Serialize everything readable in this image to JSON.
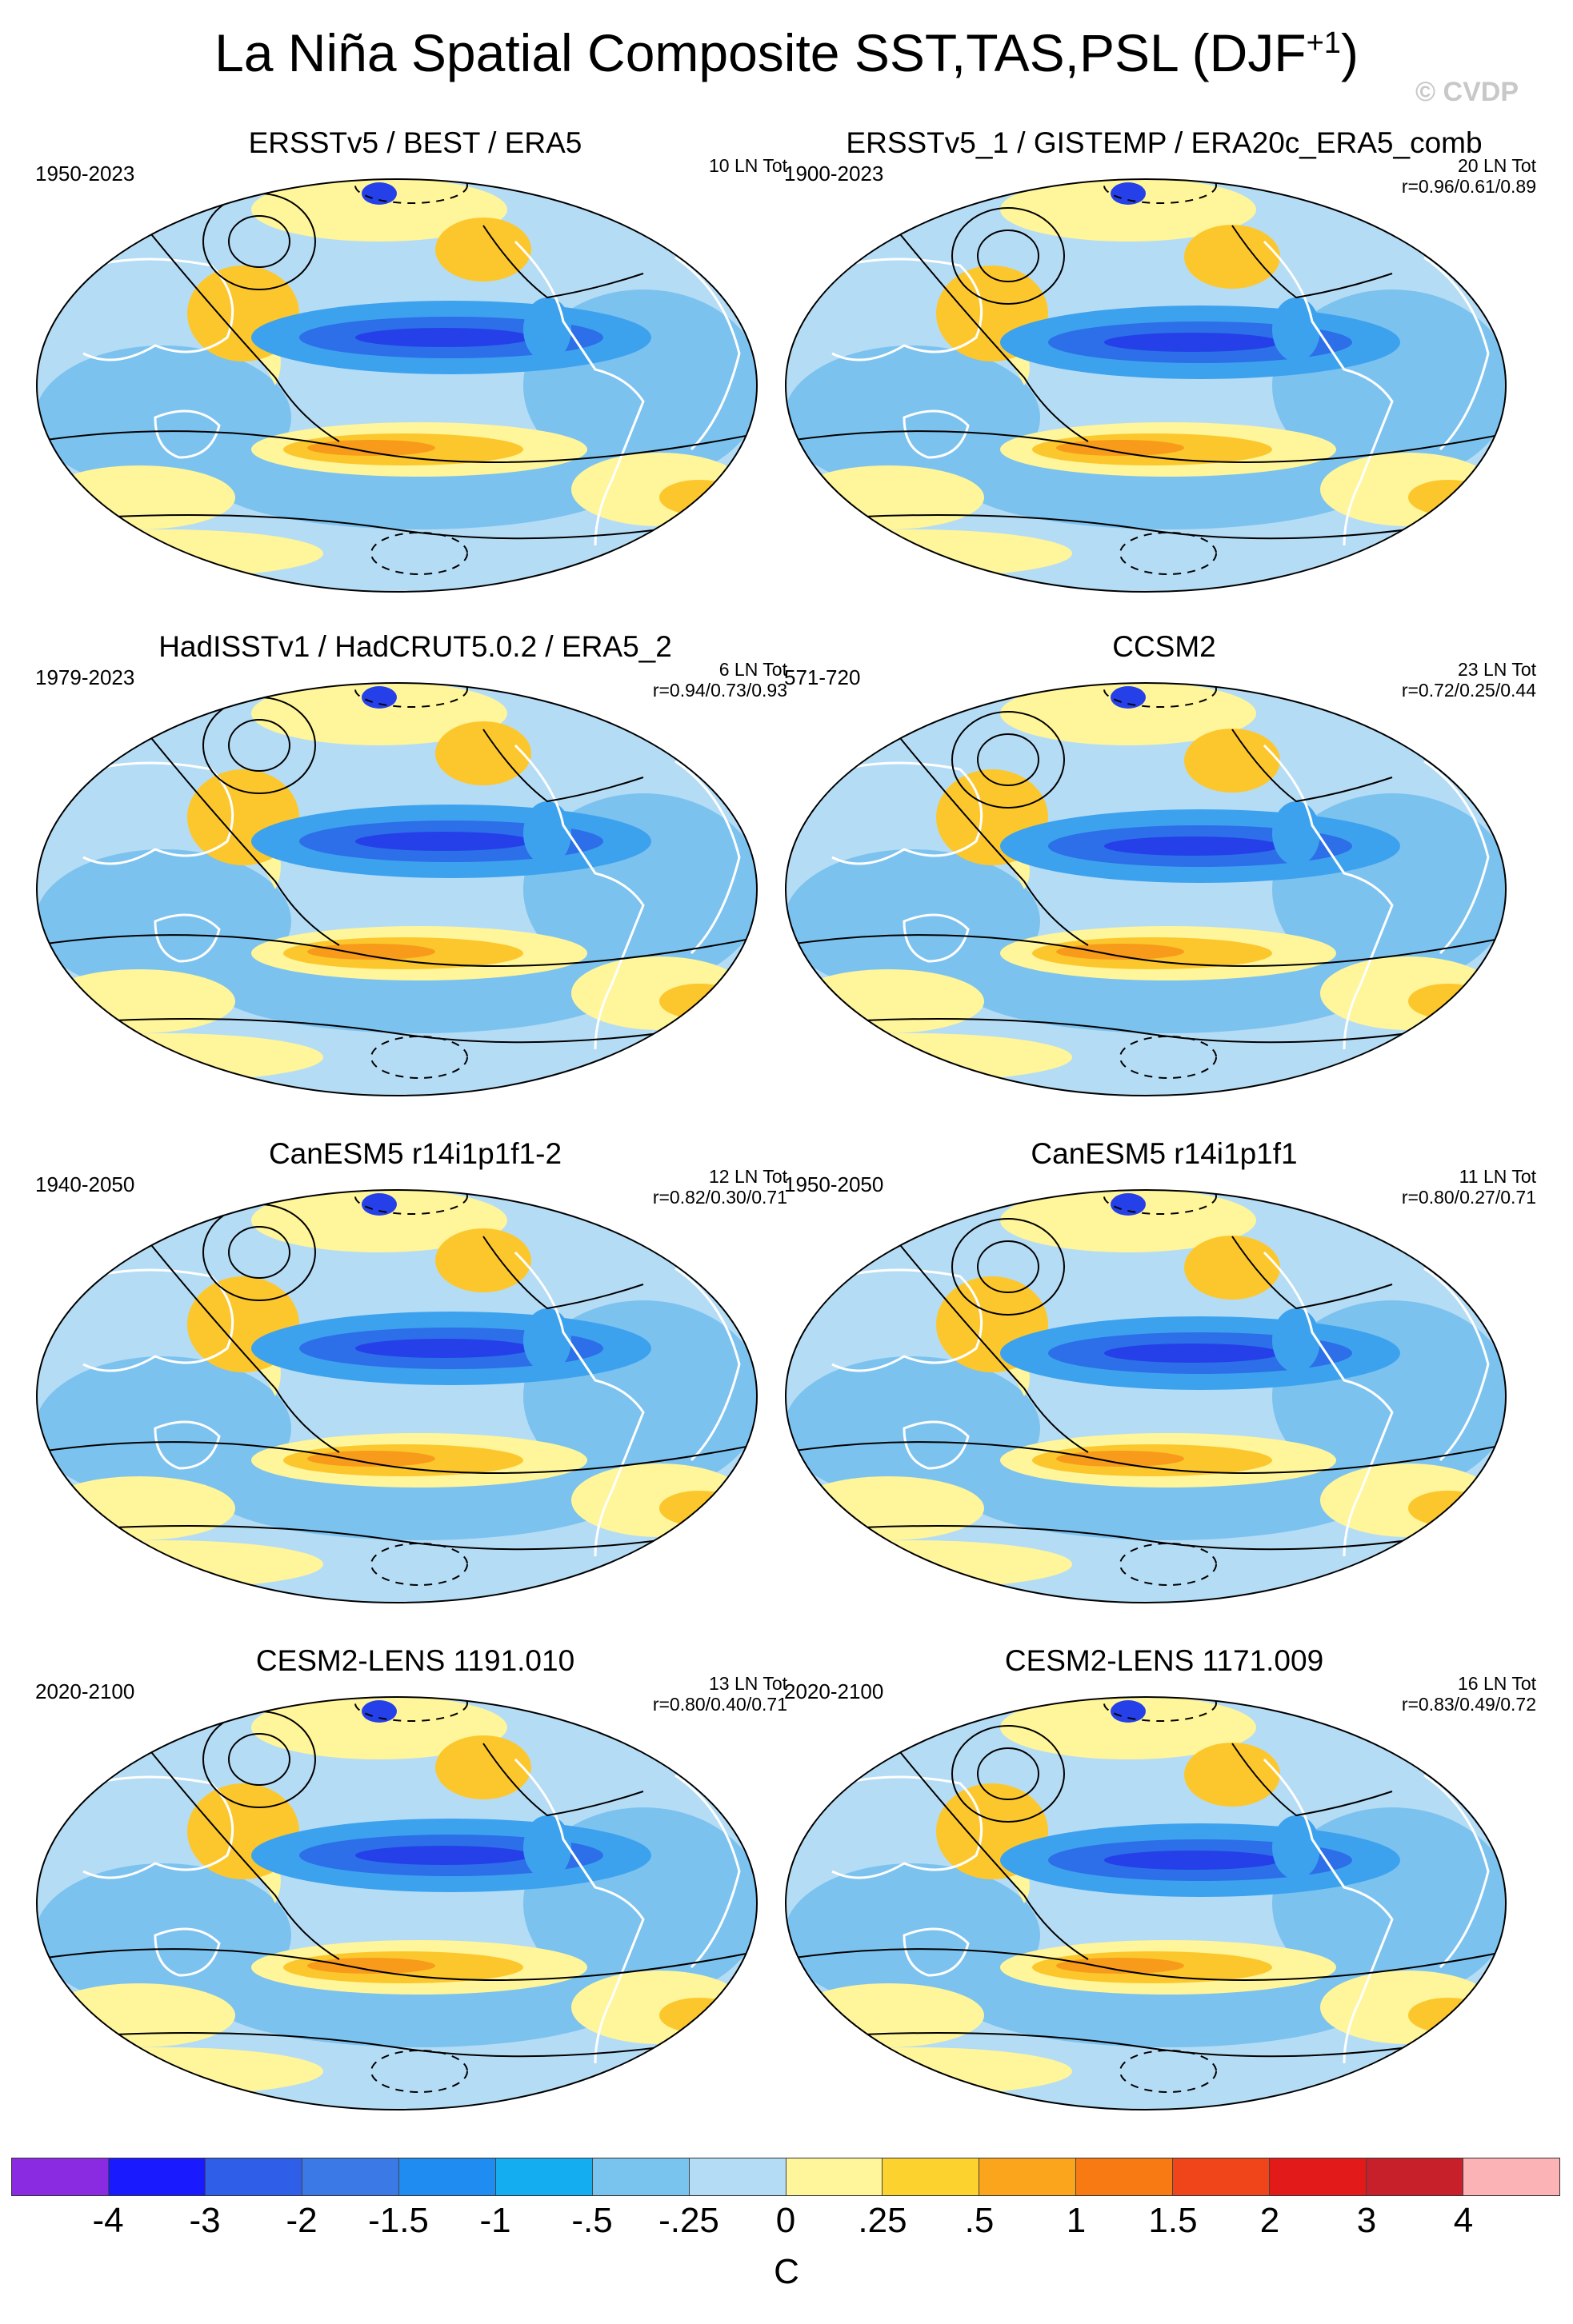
{
  "title": "La Niña Spatial Composite SST,TAS,PSL (DJF",
  "title_sup": "+1",
  "title_end": ")",
  "copyright": "© CVDP",
  "colors": {
    "background_field": "#b5dcf5",
    "cool_light": "#7cc2ef",
    "cool_mid": "#3da2ee",
    "cool_strong": "#2c6fe8",
    "cold_core": "#2540e8",
    "warm_light": "#fff59a",
    "warm_mid": "#fcc72d",
    "warm_strong": "#f89a1a",
    "contour": "#000000",
    "coast": "#ffffff"
  },
  "panels": [
    {
      "title": "ERSSTv5 / BEST / ERA5",
      "years": "1950-2023",
      "count": "10 LN Tot",
      "corr": ""
    },
    {
      "title": "ERSSTv5_1 / GISTEMP / ERA20c_ERA5_comb",
      "years": "1900-2023",
      "count": "20 LN Tot",
      "corr": "r=0.96/0.61/0.89"
    },
    {
      "title": "HadISSTv1 / HadCRUT5.0.2 / ERA5_2",
      "years": "1979-2023",
      "count": "6 LN Tot",
      "corr": "r=0.94/0.73/0.93"
    },
    {
      "title": "CCSM2",
      "years": "571-720",
      "count": "23 LN Tot",
      "corr": "r=0.72/0.25/0.44"
    },
    {
      "title": "CanESM5 r14i1p1f1-2",
      "years": "1940-2050",
      "count": "12 LN Tot",
      "corr": "r=0.82/0.30/0.71"
    },
    {
      "title": "CanESM5 r14i1p1f1",
      "years": "1950-2050",
      "count": "11 LN Tot",
      "corr": "r=0.80/0.27/0.71"
    },
    {
      "title": "CESM2-LENS 1191.010",
      "years": "2020-2100",
      "count": "13 LN Tot",
      "corr": "r=0.80/0.40/0.71"
    },
    {
      "title": "CESM2-LENS 1171.009",
      "years": "2020-2100",
      "count": "16 LN Tot",
      "corr": "r=0.83/0.49/0.72"
    }
  ],
  "colorbar": {
    "boxes": [
      "#8a2be2",
      "#1a1aff",
      "#2f5ee8",
      "#3b7ae6",
      "#1e8cf0",
      "#14aef0",
      "#79c3ef",
      "#b5dcf5",
      "#fff59a",
      "#fcd22f",
      "#fba51d",
      "#f87a13",
      "#f0441a",
      "#e21a1a",
      "#c8202a",
      "#fbb3b5"
    ],
    "labels": [
      "-4",
      "-3",
      "-2",
      "-1.5",
      "-1",
      "-.5",
      "-.25",
      "0",
      ".25",
      ".5",
      "1",
      "1.5",
      "2",
      "3",
      "4"
    ],
    "unit": "C"
  }
}
